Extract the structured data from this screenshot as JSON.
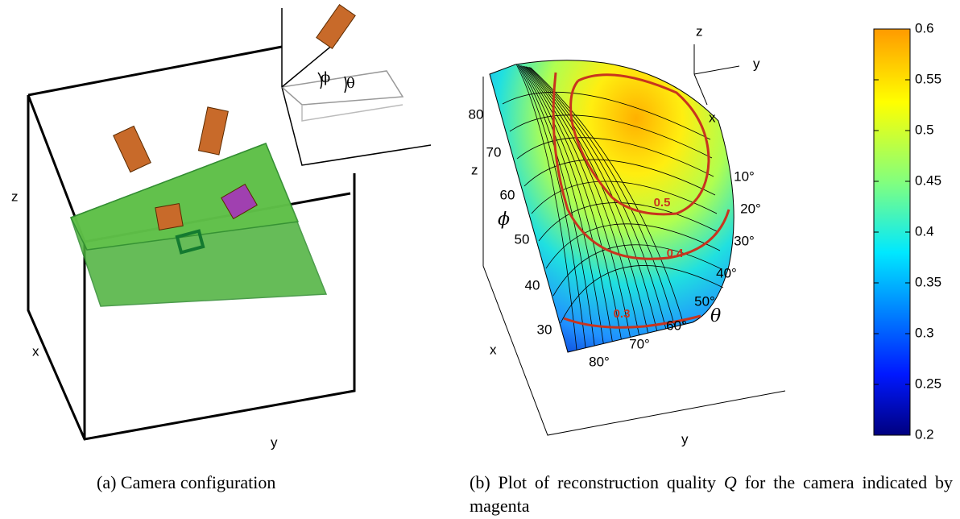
{
  "panel_a": {
    "axis_labels": {
      "z": "z",
      "x": "x",
      "y": "y"
    },
    "angle_labels": {
      "phi": "ϕ",
      "theta": "θ"
    },
    "caption": "(a) Camera configuration"
  },
  "panel_b": {
    "orientation_axes": {
      "z": "z",
      "y": "y",
      "x": "x"
    },
    "axis_labels": {
      "z": "z",
      "x": "x",
      "y": "y"
    },
    "phi_symbol": "ϕ",
    "theta_symbol": "θ",
    "phi_ticks": [
      80,
      70,
      60,
      50,
      40,
      30
    ],
    "theta_ticks": [
      "10°",
      "20°",
      "30°",
      "40°",
      "50°",
      "60°",
      "70°",
      "80°"
    ],
    "contour_labels": [
      0.5,
      0.4,
      0.3
    ],
    "colorbar": {
      "ylim": [
        0.2,
        0.6
      ],
      "yticks": [
        0.2,
        0.25,
        0.3,
        0.35,
        0.4,
        0.45,
        0.5,
        0.55,
        0.6
      ]
    },
    "caption": {
      "before": "(b) Plot of reconstruction quality ",
      "symbol": "Q",
      "after": " for the camera indicated by magenta"
    }
  }
}
